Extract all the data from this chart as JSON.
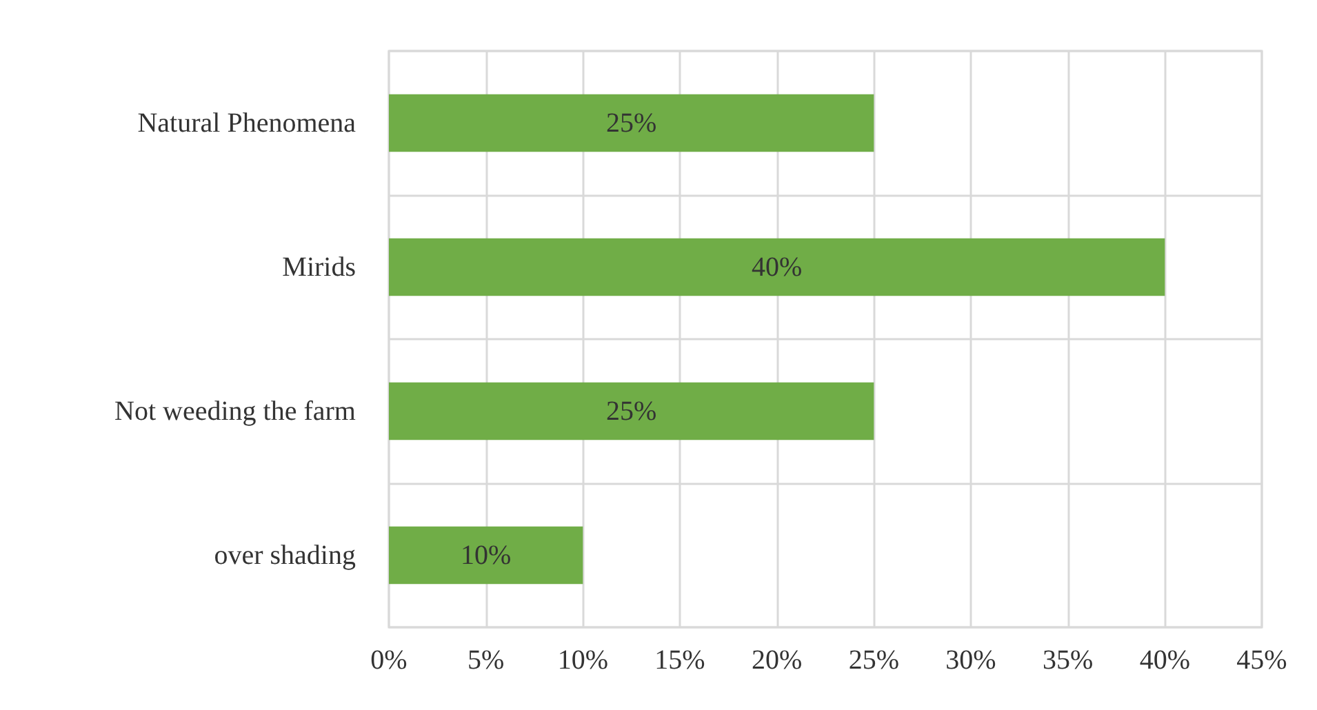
{
  "chart_data": {
    "type": "bar",
    "orientation": "horizontal",
    "categories": [
      "Natural Phenomena",
      "Mirids",
      "Not weeding the farm",
      "over shading"
    ],
    "values": [
      25,
      40,
      25,
      10
    ],
    "value_labels": [
      "25%",
      "40%",
      "25%",
      "10%"
    ],
    "color": "#70ad47",
    "xlim": [
      0,
      45
    ],
    "xticks": [
      {
        "value": 0,
        "label": "0%"
      },
      {
        "value": 5,
        "label": "5%"
      },
      {
        "value": 10,
        "label": "10%"
      },
      {
        "value": 15,
        "label": "15%"
      },
      {
        "value": 20,
        "label": "20%"
      },
      {
        "value": 25,
        "label": "25%"
      },
      {
        "value": 30,
        "label": "30%"
      },
      {
        "value": 35,
        "label": "35%"
      },
      {
        "value": 40,
        "label": "40%"
      },
      {
        "value": 45,
        "label": "45%"
      }
    ],
    "grid": true
  }
}
